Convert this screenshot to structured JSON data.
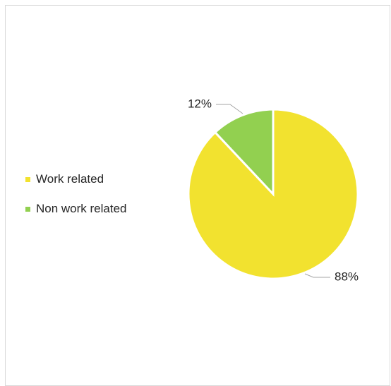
{
  "chart_data": {
    "type": "pie",
    "title": "",
    "slices": [
      {
        "name": "Work related",
        "value": 88,
        "label": "88%",
        "color": "#f2e22f"
      },
      {
        "name": "Non work related",
        "value": 12,
        "label": "12%",
        "color": "#92d050"
      }
    ],
    "legend_position": "left",
    "start_angle_deg": 0,
    "direction": "clockwise",
    "slice_border_color": "#ffffff",
    "leader_line_color": "#a6a6a6"
  }
}
